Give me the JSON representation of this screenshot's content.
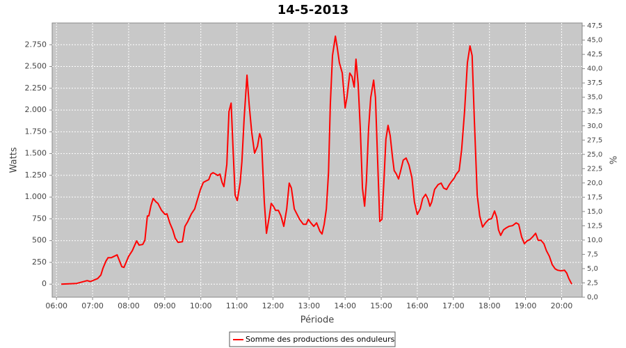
{
  "chart_data": {
    "type": "line",
    "title": "14-5-2013",
    "x_label": "Période",
    "y_label": "Watts",
    "y2_label": "%",
    "x": [
      6.13,
      6.56,
      6.85,
      6.94,
      7.14,
      7.23,
      7.29,
      7.37,
      7.43,
      7.52,
      7.68,
      7.75,
      7.81,
      7.87,
      8.0,
      8.1,
      8.22,
      8.29,
      8.39,
      8.45,
      8.52,
      8.56,
      8.62,
      8.68,
      8.76,
      8.81,
      8.91,
      9.01,
      9.06,
      9.14,
      9.22,
      9.29,
      9.37,
      9.49,
      9.56,
      9.64,
      9.74,
      9.83,
      9.91,
      9.99,
      10.07,
      10.14,
      10.22,
      10.28,
      10.34,
      10.41,
      10.47,
      10.53,
      10.59,
      10.64,
      10.72,
      10.78,
      10.84,
      10.89,
      10.95,
      11.01,
      11.09,
      11.14,
      11.2,
      11.28,
      11.34,
      11.41,
      11.49,
      11.57,
      11.63,
      11.68,
      11.76,
      11.82,
      11.9,
      11.95,
      12.01,
      12.07,
      12.15,
      12.22,
      12.3,
      12.38,
      12.45,
      12.51,
      12.59,
      12.67,
      12.74,
      12.84,
      12.92,
      12.98,
      13.05,
      13.13,
      13.21,
      13.3,
      13.36,
      13.42,
      13.48,
      13.54,
      13.59,
      13.65,
      13.73,
      13.78,
      13.84,
      13.92,
      14.0,
      14.05,
      14.13,
      14.19,
      14.25,
      14.3,
      14.36,
      14.42,
      14.48,
      14.54,
      14.59,
      14.65,
      14.71,
      14.79,
      14.84,
      14.9,
      14.96,
      15.02,
      15.08,
      15.13,
      15.19,
      15.25,
      15.31,
      15.36,
      15.42,
      15.48,
      15.54,
      15.61,
      15.69,
      15.77,
      15.85,
      15.92,
      16.0,
      16.08,
      16.15,
      16.23,
      16.29,
      16.35,
      16.4,
      16.48,
      16.58,
      16.66,
      16.73,
      16.81,
      16.89,
      16.96,
      17.02,
      17.08,
      17.16,
      17.23,
      17.31,
      17.39,
      17.46,
      17.52,
      17.58,
      17.66,
      17.73,
      17.81,
      17.89,
      17.98,
      18.06,
      18.14,
      18.2,
      18.25,
      18.31,
      18.39,
      18.47,
      18.54,
      18.64,
      18.74,
      18.81,
      18.89,
      18.97,
      19.04,
      19.12,
      19.2,
      19.28,
      19.35,
      19.43,
      19.51,
      19.58,
      19.66,
      19.74,
      19.82,
      19.89,
      19.99,
      20.08,
      20.14,
      20.2,
      20.28
    ],
    "series": [
      {
        "name": "Somme des productions des onduleurs",
        "color": "#ff0000",
        "values": [
          0,
          8,
          40,
          30,
          64,
          104,
          184,
          264,
          304,
          304,
          336,
          264,
          200,
          192,
          320,
          384,
          496,
          448,
          456,
          504,
          784,
          784,
          904,
          984,
          944,
          928,
          848,
          800,
          808,
          704,
          624,
          528,
          480,
          488,
          664,
          720,
          808,
          864,
          976,
          1088,
          1168,
          1184,
          1200,
          1264,
          1280,
          1264,
          1248,
          1264,
          1168,
          1120,
          1376,
          1984,
          2080,
          1584,
          1024,
          960,
          1168,
          1408,
          1904,
          2400,
          2064,
          1744,
          1504,
          1584,
          1728,
          1664,
          944,
          584,
          784,
          928,
          896,
          848,
          848,
          784,
          664,
          864,
          1160,
          1104,
          864,
          800,
          744,
          688,
          688,
          744,
          704,
          664,
          704,
          608,
          576,
          688,
          864,
          1280,
          2064,
          2624,
          2848,
          2720,
          2544,
          2424,
          2024,
          2144,
          2424,
          2384,
          2264,
          2584,
          2304,
          1784,
          1104,
          896,
          1184,
          1784,
          2144,
          2344,
          2144,
          1424,
          720,
          744,
          1224,
          1664,
          1824,
          1704,
          1464,
          1304,
          1264,
          1208,
          1304,
          1424,
          1448,
          1368,
          1224,
          944,
          800,
          864,
          984,
          1032,
          984,
          896,
          944,
          1088,
          1144,
          1160,
          1104,
          1088,
          1144,
          1184,
          1216,
          1264,
          1304,
          1544,
          1984,
          2544,
          2736,
          2624,
          1904,
          1024,
          784,
          656,
          704,
          744,
          752,
          840,
          768,
          624,
          560,
          624,
          648,
          664,
          672,
          704,
          688,
          544,
          464,
          496,
          512,
          544,
          584,
          504,
          504,
          464,
          384,
          320,
          224,
          176,
          160,
          152,
          160,
          128,
          64,
          0
        ]
      }
    ],
    "xlim": [
      5.88,
      20.57
    ],
    "xticks": [
      {
        "value": 6,
        "label": "06:00"
      },
      {
        "value": 7,
        "label": "07:00"
      },
      {
        "value": 8,
        "label": "08:00"
      },
      {
        "value": 9,
        "label": "09:00"
      },
      {
        "value": 10,
        "label": "10:00"
      },
      {
        "value": 11,
        "label": "11:00"
      },
      {
        "value": 12,
        "label": "12:00"
      },
      {
        "value": 13,
        "label": "13:00"
      },
      {
        "value": 14,
        "label": "14:00"
      },
      {
        "value": 15,
        "label": "15:00"
      },
      {
        "value": 16,
        "label": "16:00"
      },
      {
        "value": 17,
        "label": "17:00"
      },
      {
        "value": 18,
        "label": "18:00"
      },
      {
        "value": 19,
        "label": "19:00"
      },
      {
        "value": 20,
        "label": "20:00"
      }
    ],
    "ylim": [
      -150,
      3000
    ],
    "yticks": [
      0,
      250,
      500,
      750,
      {
        "value": 1000,
        "label": "1.000"
      },
      {
        "value": 1250,
        "label": "1.250"
      },
      {
        "value": 1500,
        "label": "1.500"
      },
      {
        "value": 1750,
        "label": "1.750"
      },
      {
        "value": 2000,
        "label": "2.000"
      },
      {
        "value": 2250,
        "label": "2.250"
      },
      {
        "value": 2500,
        "label": "2.500"
      },
      {
        "value": 2750,
        "label": "2.750"
      }
    ],
    "y2lim": [
      0,
      48
    ],
    "y2ticks": [
      {
        "value": 0,
        "label": "0,0"
      },
      {
        "value": 2.5,
        "label": "2,5"
      },
      {
        "value": 5,
        "label": "5,0"
      },
      {
        "value": 7.5,
        "label": "7,5"
      },
      {
        "value": 10,
        "label": "10,0"
      },
      {
        "value": 12.5,
        "label": "12,5"
      },
      {
        "value": 15,
        "label": "15,0"
      },
      {
        "value": 17.5,
        "label": "17,5"
      },
      {
        "value": 20,
        "label": "20,0"
      },
      {
        "value": 22.5,
        "label": "22,5"
      },
      {
        "value": 25,
        "label": "25,0"
      },
      {
        "value": 27.5,
        "label": "27,5"
      },
      {
        "value": 30,
        "label": "30,0"
      },
      {
        "value": 32.5,
        "label": "32,5"
      },
      {
        "value": 35,
        "label": "35,0"
      },
      {
        "value": 37.5,
        "label": "37,5"
      },
      {
        "value": 40,
        "label": "40,0"
      },
      {
        "value": 42.5,
        "label": "42,5"
      },
      {
        "value": 45,
        "label": "45,0"
      },
      {
        "value": 47.5,
        "label": "47,5"
      }
    ],
    "grid": true
  }
}
